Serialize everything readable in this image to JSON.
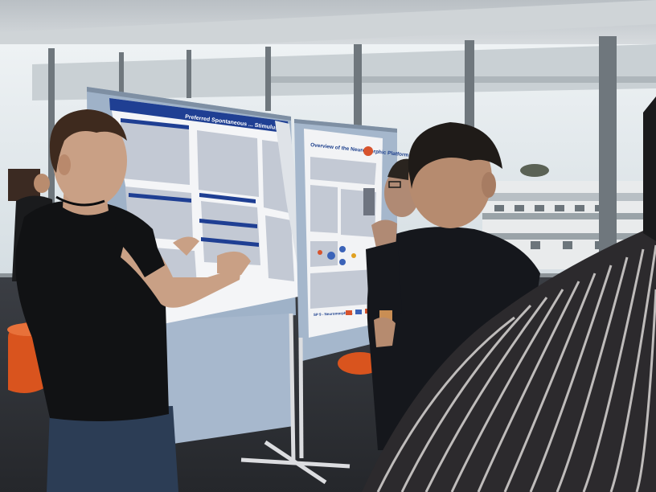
{
  "scene": {
    "description_tag": "photo",
    "poster_left": {
      "title": "Preferred Spontaneous ... Stimulus ..."
    },
    "poster_right": {
      "title": "Overview of the Neuromorphic Platform",
      "footer": "SP 9 - Neuromorphic ..."
    }
  },
  "colors": {
    "ceiling": "#c8ccd0",
    "window_sky": "#dfe6ea",
    "floor": "#2e3034",
    "board": "#9fb2c8",
    "poster_left_header": "#1f3f93",
    "poster_right_bg": "#f2f3f5",
    "shirt_black": "#111214",
    "jeans": "#2c3d55",
    "stool_orange": "#d9541e"
  }
}
